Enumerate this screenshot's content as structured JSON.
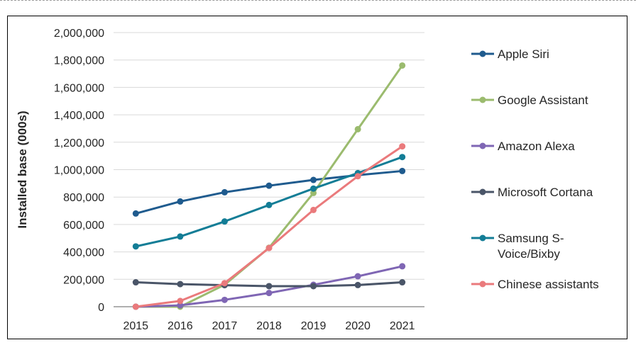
{
  "chart_data": {
    "type": "line",
    "ylabel": "Installed base (000s)",
    "xlabel": "",
    "title": "",
    "ylim": [
      0,
      2000000
    ],
    "yticks": [
      "0",
      "200,000",
      "400,000",
      "600,000",
      "800,000",
      "1,000,000",
      "1,200,000",
      "1,400,000",
      "1,600,000",
      "1,800,000",
      "2,000,000"
    ],
    "categories": [
      "2015",
      "2016",
      "2017",
      "2018",
      "2019",
      "2020",
      "2021"
    ],
    "grid": true,
    "legend_position": "right",
    "series": [
      {
        "name": "Apple Siri",
        "legend_lines": [
          "Apple Siri"
        ],
        "color": "#1f5b8e",
        "values": [
          680000,
          768000,
          835000,
          883000,
          925000,
          960000,
          990000
        ]
      },
      {
        "name": "Google Assistant",
        "legend_lines": [
          "Google Assistant"
        ],
        "color": "#9bbb6e",
        "values": [
          0,
          0,
          160000,
          430000,
          830000,
          1295000,
          1760000
        ]
      },
      {
        "name": "Amazon Alexa",
        "legend_lines": [
          "Amazon Alexa"
        ],
        "color": "#7f66b4",
        "values": [
          0,
          10000,
          50000,
          100000,
          160000,
          222000,
          295000
        ]
      },
      {
        "name": "Microsoft Cortana",
        "legend_lines": [
          "Microsoft Cortana"
        ],
        "color": "#4a5568",
        "values": [
          178000,
          165000,
          157000,
          150000,
          150000,
          158000,
          178000
        ]
      },
      {
        "name": "Samsung S-Voice/Bixby",
        "legend_lines": [
          "Samsung S-",
          "Voice/Bixby"
        ],
        "color": "#137d96",
        "values": [
          440000,
          512000,
          622000,
          742000,
          862000,
          975000,
          1092000
        ]
      },
      {
        "name": "Chinese assistants",
        "legend_lines": [
          "Chinese assistants"
        ],
        "color": "#ea7a7c",
        "values": [
          0,
          42000,
          172000,
          428000,
          706000,
          952000,
          1170000
        ]
      }
    ]
  }
}
